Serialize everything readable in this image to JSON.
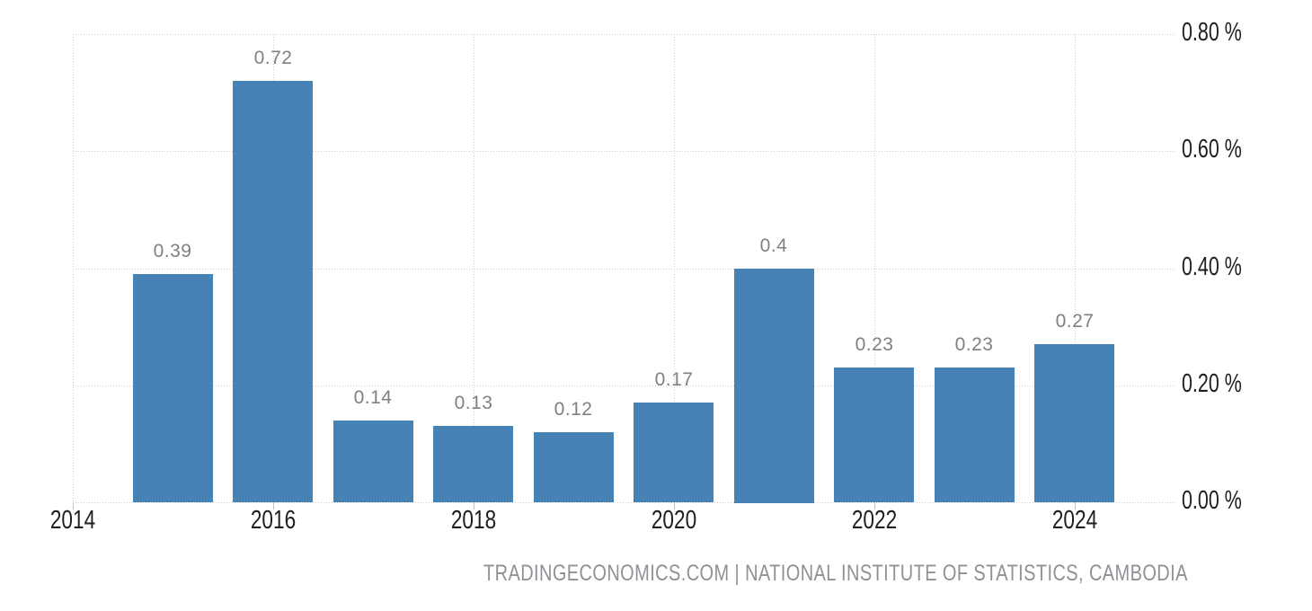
{
  "chart_data": {
    "type": "bar",
    "x": [
      2015,
      2016,
      2017,
      2018,
      2019,
      2020,
      2021,
      2022,
      2023,
      2024
    ],
    "values": [
      0.39,
      0.72,
      0.14,
      0.13,
      0.12,
      0.17,
      0.4,
      0.23,
      0.23,
      0.27
    ],
    "value_labels": [
      "0.39",
      "0.72",
      "0.14",
      "0.13",
      "0.12",
      "0.17",
      "0.4",
      "0.23",
      "0.23",
      "0.27"
    ],
    "x_tick_years": [
      2014,
      2016,
      2018,
      2020,
      2022,
      2024
    ],
    "x_tick_labels": [
      "2014",
      "2016",
      "2018",
      "2020",
      "2022",
      "2024"
    ],
    "y_tick_values": [
      0,
      0.2,
      0.4,
      0.6,
      0.8
    ],
    "y_tick_labels": [
      "0.00 %",
      "0.20 %",
      "0.40 %",
      "0.60 %",
      "0.80 %"
    ],
    "title": "",
    "xlabel": "",
    "ylabel": "",
    "xlim": [
      2014,
      2025
    ],
    "ylim": [
      0,
      0.8
    ],
    "grid": "dotted",
    "legend_position": "none",
    "bar_color": "#4682b4",
    "value_label_color": "#808080",
    "axis_label_color": "#1f1f1f",
    "gridline_color": "#cccccc",
    "tick_color": "#c0c0c0"
  },
  "footer": {
    "text": "TRADINGECONOMICS.COM | NATIONAL INSTITUTE OF STATISTICS, CAMBODIA",
    "color": "#8e9296"
  }
}
